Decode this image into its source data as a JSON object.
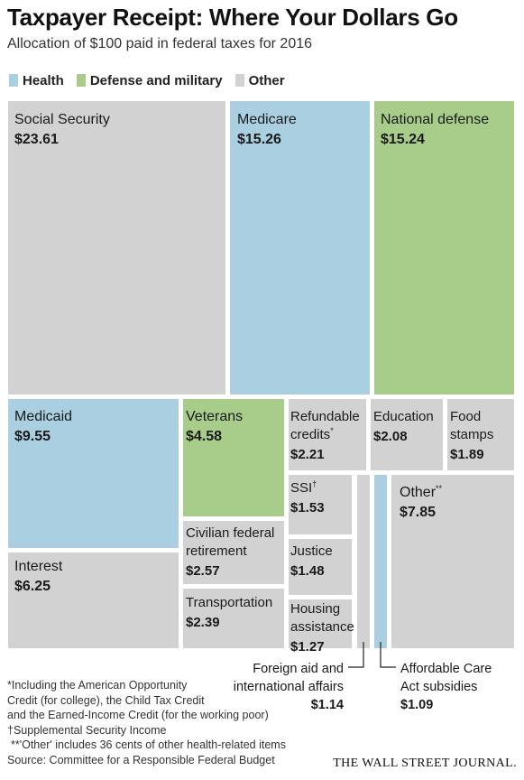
{
  "chart_data": {
    "type": "treemap",
    "title": "Taxpayer Receipt: Where Your Dollars Go",
    "subtitle": "Allocation of $100 paid in federal taxes for 2016",
    "legend": [
      {
        "name": "Health",
        "color": "#a9cfe1"
      },
      {
        "name": "Defense and military",
        "color": "#a8cd8a"
      },
      {
        "name": "Other",
        "color": "#d2d2d2"
      }
    ],
    "items": [
      {
        "name": "Social Security",
        "value": 23.61,
        "label": "$23.61",
        "category": "Other"
      },
      {
        "name": "Medicare",
        "value": 15.26,
        "label": "$15.26",
        "category": "Health"
      },
      {
        "name": "National defense",
        "value": 15.24,
        "label": "$15.24",
        "category": "Defense and military"
      },
      {
        "name": "Medicaid",
        "value": 9.55,
        "label": "$9.55",
        "category": "Health"
      },
      {
        "name": "Interest",
        "value": 6.25,
        "label": "$6.25",
        "category": "Other"
      },
      {
        "name": "Veterans",
        "value": 4.58,
        "label": "$4.58",
        "category": "Defense and military"
      },
      {
        "name": "Civilian federal retirement",
        "value": 2.57,
        "label": "$2.57",
        "category": "Other"
      },
      {
        "name": "Transportation",
        "value": 2.39,
        "label": "$2.39",
        "category": "Other"
      },
      {
        "name": "Refundable credits",
        "marker": "*",
        "value": 2.21,
        "label": "$2.21",
        "category": "Other"
      },
      {
        "name": "Education",
        "value": 2.08,
        "label": "$2.08",
        "category": "Other"
      },
      {
        "name": "Food stamps",
        "value": 1.89,
        "label": "$1.89",
        "category": "Other"
      },
      {
        "name": "SSI",
        "marker": "†",
        "value": 1.53,
        "label": "$1.53",
        "category": "Other"
      },
      {
        "name": "Justice",
        "value": 1.48,
        "label": "$1.48",
        "category": "Other"
      },
      {
        "name": "Housing assistance",
        "value": 1.27,
        "label": "$1.27",
        "category": "Other"
      },
      {
        "name": "Foreign aid and international affairs",
        "value": 1.14,
        "label": "$1.14",
        "category": "Other"
      },
      {
        "name": "Affordable Care Act subsidies",
        "value": 1.09,
        "label": "$1.09",
        "category": "Health"
      },
      {
        "name": "Other",
        "marker": "**",
        "value": 7.85,
        "label": "$7.85",
        "category": "Other"
      }
    ]
  },
  "footnotes": [
    "*Including the American Opportunity",
    "Credit (for college), the Child Tax Credit",
    "and the Earned-Income Credit (for the working poor)",
    "†Supplemental Security Income",
    "**'Other' includes 36 cents of other health-related items",
    "Source: Committee for a Responsible Federal Budget"
  ],
  "brand": "THE WALL STREET JOURNAL."
}
